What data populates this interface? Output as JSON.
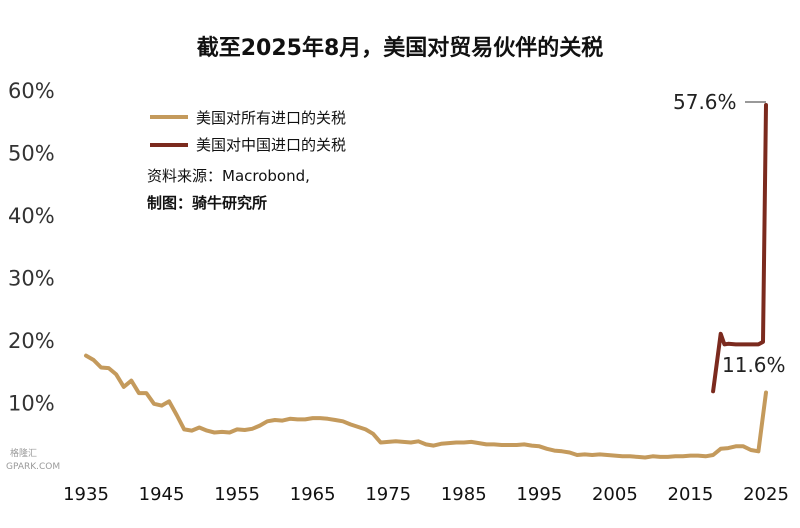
{
  "chart_data": {
    "type": "line",
    "title": "截至2025年8月，美国对贸易伙伴的关税",
    "ylim": [
      0,
      60
    ],
    "xlim": [
      1935,
      2025
    ],
    "y_ticks": [
      "60%",
      "50%",
      "40%",
      "30%",
      "20%",
      "10%"
    ],
    "x_ticks": [
      "1935",
      "1945",
      "1955",
      "1965",
      "1975",
      "1985",
      "1995",
      "2005",
      "2015",
      "2025"
    ],
    "x_tick_values": [
      1935,
      1945,
      1955,
      1965,
      1975,
      1985,
      1995,
      2005,
      2015,
      2025
    ],
    "legend_placement": "top-left",
    "series": [
      {
        "name": "美国对所有进口的关税",
        "color": "#c49a5c",
        "x": [
          1935,
          1936,
          1937,
          1938,
          1939,
          1940,
          1941,
          1942,
          1943,
          1944,
          1945,
          1946,
          1947,
          1948,
          1949,
          1950,
          1951,
          1952,
          1953,
          1954,
          1955,
          1956,
          1957,
          1958,
          1959,
          1960,
          1961,
          1962,
          1963,
          1964,
          1965,
          1966,
          1967,
          1968,
          1969,
          1970,
          1971,
          1972,
          1973,
          1974,
          1975,
          1976,
          1977,
          1978,
          1979,
          1980,
          1981,
          1982,
          1983,
          1984,
          1985,
          1986,
          1987,
          1988,
          1989,
          1990,
          1991,
          1992,
          1993,
          1994,
          1995,
          1996,
          1997,
          1998,
          1999,
          2000,
          2001,
          2002,
          2003,
          2004,
          2005,
          2006,
          2007,
          2008,
          2009,
          2010,
          2011,
          2012,
          2013,
          2014,
          2015,
          2016,
          2017,
          2018,
          2019,
          2020,
          2021,
          2022,
          2023,
          2024,
          2025
        ],
        "values": [
          17.5,
          16.8,
          15.6,
          15.5,
          14.5,
          12.5,
          13.5,
          11.5,
          11.5,
          9.8,
          9.5,
          10.2,
          8.0,
          5.7,
          5.5,
          6.0,
          5.5,
          5.2,
          5.3,
          5.2,
          5.7,
          5.6,
          5.8,
          6.3,
          7.0,
          7.2,
          7.1,
          7.4,
          7.3,
          7.3,
          7.5,
          7.5,
          7.4,
          7.2,
          7.0,
          6.5,
          6.1,
          5.7,
          5.0,
          3.6,
          3.7,
          3.8,
          3.7,
          3.6,
          3.8,
          3.3,
          3.1,
          3.4,
          3.5,
          3.6,
          3.6,
          3.7,
          3.5,
          3.3,
          3.3,
          3.2,
          3.2,
          3.2,
          3.3,
          3.1,
          3.0,
          2.6,
          2.3,
          2.2,
          2.0,
          1.6,
          1.7,
          1.6,
          1.7,
          1.6,
          1.5,
          1.4,
          1.4,
          1.3,
          1.2,
          1.4,
          1.3,
          1.3,
          1.4,
          1.4,
          1.5,
          1.5,
          1.4,
          1.6,
          2.6,
          2.7,
          3.0,
          3.0,
          2.4,
          2.2,
          11.6
        ]
      },
      {
        "name": "美国对中国进口的关税",
        "color": "#7b2a1e",
        "x": [
          2018,
          2019,
          2019.5,
          2020,
          2021,
          2022,
          2023,
          2024,
          2024.6,
          2025
        ],
        "values": [
          11.8,
          21.0,
          19.3,
          19.4,
          19.3,
          19.3,
          19.3,
          19.3,
          19.7,
          57.6
        ]
      }
    ],
    "annotations": [
      "57.6%",
      "11.6%"
    ],
    "notes": {
      "source": "资料来源：Macrobond,",
      "author": "制图：骑牛研究所"
    }
  },
  "watermark": {
    "line1": "格隆汇",
    "line2": "GPARK.COM"
  }
}
